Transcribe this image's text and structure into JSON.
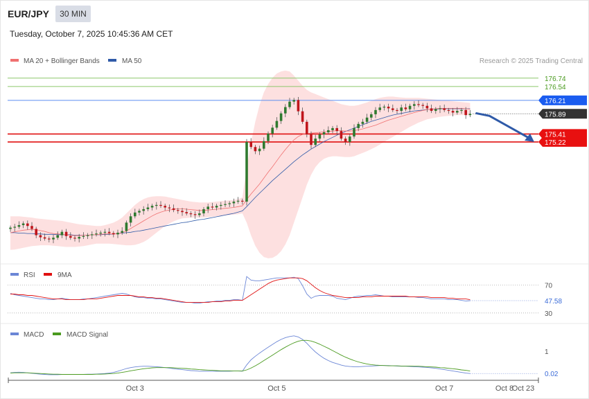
{
  "header": {
    "symbol": "EUR/JPY",
    "timeframe": "30 MIN",
    "datetime": "Tuesday, October 7, 2025 10:45:36 AM CET",
    "copyright": "Research © 2025 Trading Central"
  },
  "colors": {
    "ma20": "#f07070",
    "ma50": "#2f5aa8",
    "band_fill": "#fde0e0",
    "candle_up": "#2f7a2f",
    "candle_down": "#c0161c",
    "resistance": "#8cc76a",
    "pivot": "#5b8ef0",
    "support": "#e01010",
    "rsi": "#6b86d6",
    "rsi_ma": "#e01010",
    "macd": "#6b86d6",
    "macd_signal": "#4a9a1e"
  },
  "chart_data": [
    {
      "type": "candlestick",
      "legend": [
        {
          "name": "MA 20 + Bollinger Bands",
          "color": "#f07070"
        },
        {
          "name": "MA 50",
          "color": "#2f5aa8"
        }
      ],
      "ylim": [
        172.3,
        177.0
      ],
      "levels": [
        {
          "value": 176.74,
          "label": "176.74",
          "kind": "resistance"
        },
        {
          "value": 176.54,
          "label": "176.54",
          "kind": "resistance"
        },
        {
          "value": 176.21,
          "label": "176.21",
          "kind": "pivot"
        },
        {
          "value": 175.89,
          "label": "175.89",
          "kind": "last"
        },
        {
          "value": 175.41,
          "label": "175.41",
          "kind": "support"
        },
        {
          "value": 175.22,
          "label": "175.22",
          "kind": "support"
        }
      ],
      "closes": [
        173.18,
        173.2,
        173.24,
        173.28,
        173.22,
        173.15,
        173.0,
        172.95,
        172.92,
        172.9,
        172.94,
        173.0,
        173.08,
        172.98,
        172.94,
        172.92,
        172.96,
        172.98,
        173.0,
        173.02,
        173.04,
        173.06,
        173.08,
        173.05,
        173.02,
        173.06,
        173.1,
        173.3,
        173.45,
        173.54,
        173.58,
        173.62,
        173.66,
        173.7,
        173.72,
        173.7,
        173.66,
        173.64,
        173.6,
        173.58,
        173.55,
        173.52,
        173.5,
        173.48,
        173.52,
        173.62,
        173.68,
        173.66,
        173.7,
        173.72,
        173.74,
        173.76,
        173.8,
        173.82,
        173.8,
        175.22,
        175.1,
        175.0,
        175.06,
        175.24,
        175.42,
        175.56,
        175.72,
        175.9,
        176.05,
        176.18,
        176.22,
        175.95,
        175.7,
        175.4,
        175.15,
        175.3,
        175.4,
        175.45,
        175.5,
        175.55,
        175.48,
        175.3,
        175.22,
        175.35,
        175.55,
        175.65,
        175.7,
        175.8,
        175.88,
        175.98,
        176.04,
        176.06,
        176.02,
        175.98,
        175.96,
        176.04,
        176.0,
        176.08,
        176.12,
        176.1,
        176.08,
        176.02,
        175.96,
        176.0,
        176.02,
        175.98,
        175.96,
        175.92,
        175.96,
        175.98,
        175.86,
        175.89
      ],
      "ma20": [
        173.06,
        173.08,
        173.1,
        173.12,
        173.13,
        173.14,
        173.13,
        173.11,
        173.09,
        173.06,
        173.04,
        173.03,
        173.02,
        173.01,
        173.0,
        172.99,
        172.99,
        173.0,
        173.0,
        173.01,
        173.01,
        173.02,
        173.03,
        173.03,
        173.03,
        173.04,
        173.06,
        173.1,
        173.16,
        173.22,
        173.28,
        173.34,
        173.4,
        173.46,
        173.51,
        173.55,
        173.58,
        173.6,
        173.62,
        173.63,
        173.63,
        173.62,
        173.61,
        173.6,
        173.59,
        173.59,
        173.6,
        173.61,
        173.62,
        173.63,
        173.64,
        173.65,
        173.66,
        173.68,
        173.7,
        173.85,
        173.98,
        174.1,
        174.22,
        174.36,
        174.5,
        174.63,
        174.77,
        174.91,
        175.04,
        175.16,
        175.27,
        175.35,
        175.4,
        175.42,
        175.43,
        175.44,
        175.45,
        175.46,
        175.47,
        175.48,
        175.49,
        175.49,
        175.48,
        175.48,
        175.49,
        175.51,
        175.53,
        175.56,
        175.59,
        175.62,
        175.66,
        175.7,
        175.74,
        175.77,
        175.8,
        175.83,
        175.86,
        175.89,
        175.92,
        175.95,
        175.97,
        175.99,
        176.0,
        176.01,
        176.02,
        176.02,
        176.02,
        176.02,
        176.02,
        176.02,
        176.01,
        176.0
      ],
      "bb_upper": [
        173.45,
        173.45,
        173.45,
        173.44,
        173.43,
        173.42,
        173.4,
        173.39,
        173.38,
        173.37,
        173.36,
        173.35,
        173.34,
        173.32,
        173.3,
        173.28,
        173.26,
        173.25,
        173.24,
        173.23,
        173.22,
        173.22,
        173.24,
        173.27,
        173.3,
        173.35,
        173.42,
        173.52,
        173.62,
        173.72,
        173.8,
        173.86,
        173.9,
        173.92,
        173.93,
        173.93,
        173.92,
        173.9,
        173.88,
        173.86,
        173.84,
        173.82,
        173.8,
        173.79,
        173.78,
        173.78,
        173.78,
        173.79,
        173.8,
        173.81,
        173.82,
        173.83,
        173.84,
        173.86,
        173.9,
        174.6,
        175.2,
        175.7,
        176.1,
        176.4,
        176.6,
        176.75,
        176.85,
        176.9,
        176.92,
        176.9,
        176.8,
        176.68,
        176.56,
        176.46,
        176.4,
        176.36,
        176.32,
        176.28,
        176.24,
        176.2,
        176.16,
        176.12,
        176.1,
        176.08,
        176.08,
        176.1,
        176.13,
        176.16,
        176.2,
        176.24,
        176.27,
        176.29,
        176.3,
        176.3,
        176.29,
        176.28,
        176.27,
        176.27,
        176.27,
        176.27,
        176.26,
        176.25,
        176.24,
        176.23,
        176.22,
        176.21,
        176.2,
        176.19,
        176.18,
        176.17,
        176.16,
        176.15
      ],
      "bb_lower": [
        172.65,
        172.66,
        172.68,
        172.7,
        172.72,
        172.74,
        172.75,
        172.76,
        172.76,
        172.76,
        172.75,
        172.74,
        172.73,
        172.72,
        172.72,
        172.72,
        172.73,
        172.74,
        172.76,
        172.78,
        172.8,
        172.8,
        172.8,
        172.8,
        172.79,
        172.78,
        172.77,
        172.76,
        172.76,
        172.77,
        172.8,
        172.84,
        172.9,
        172.98,
        173.06,
        173.14,
        173.22,
        173.28,
        173.33,
        173.37,
        173.4,
        173.41,
        173.42,
        173.42,
        173.42,
        173.42,
        173.43,
        173.44,
        173.45,
        173.46,
        173.47,
        173.48,
        173.49,
        173.5,
        173.52,
        173.3,
        173.0,
        172.75,
        172.58,
        172.48,
        172.45,
        172.46,
        172.52,
        172.62,
        172.78,
        173.0,
        173.3,
        173.6,
        173.9,
        174.2,
        174.44,
        174.62,
        174.74,
        174.82,
        174.86,
        174.88,
        174.88,
        174.87,
        174.86,
        174.86,
        174.88,
        174.92,
        174.96,
        175.0,
        175.05,
        175.1,
        175.16,
        175.22,
        175.28,
        175.34,
        175.4,
        175.46,
        175.52,
        175.58,
        175.63,
        175.68,
        175.72,
        175.76,
        175.78,
        175.8,
        175.82,
        175.83,
        175.84,
        175.85,
        175.86,
        175.86,
        175.86,
        175.85
      ],
      "ma50": [
        173.06,
        173.06,
        173.05,
        173.05,
        173.04,
        173.04,
        173.03,
        173.03,
        173.02,
        173.02,
        173.02,
        173.01,
        173.01,
        173.01,
        173.01,
        173.0,
        173.0,
        173.0,
        173.0,
        173.01,
        173.01,
        173.01,
        173.02,
        173.02,
        173.03,
        173.04,
        173.05,
        173.06,
        173.07,
        173.09,
        173.1,
        173.12,
        173.14,
        173.16,
        173.18,
        173.2,
        173.22,
        173.24,
        173.26,
        173.28,
        173.3,
        173.31,
        173.33,
        173.35,
        173.37,
        173.38,
        173.4,
        173.42,
        173.44,
        173.46,
        173.48,
        173.5,
        173.52,
        173.55,
        173.58,
        173.68,
        173.79,
        173.9,
        174.0,
        174.1,
        174.2,
        174.3,
        174.39,
        174.48,
        174.57,
        174.66,
        174.75,
        174.83,
        174.91,
        174.98,
        175.05,
        175.11,
        175.17,
        175.23,
        175.28,
        175.33,
        175.38,
        175.43,
        175.47,
        175.51,
        175.55,
        175.59,
        175.63,
        175.67,
        175.71,
        175.74,
        175.77,
        175.8,
        175.83,
        175.86,
        175.88,
        175.9,
        175.92,
        175.94,
        175.96,
        175.97,
        175.98,
        175.99,
        176.0,
        176.0,
        176.01,
        176.01,
        176.01,
        176.01,
        176.01,
        176.01,
        176.01,
        176.01
      ],
      "forecast": {
        "from": 175.89,
        "to": 175.22
      }
    },
    {
      "type": "line",
      "legend": [
        {
          "name": "RSI",
          "color": "#6b86d6"
        },
        {
          "name": "9MA",
          "color": "#e01010"
        }
      ],
      "ylim": [
        15,
        100
      ],
      "levels": [
        {
          "value": 70,
          "label": "70"
        },
        {
          "value": 30,
          "label": "30"
        }
      ],
      "last_label": "47.58",
      "rsi": [
        58,
        56,
        55,
        54,
        53,
        52,
        51,
        50,
        50,
        49,
        49,
        50,
        51,
        50,
        49,
        49,
        49,
        50,
        50,
        51,
        52,
        53,
        54,
        55,
        56,
        57,
        58,
        57,
        55,
        53,
        52,
        52,
        51,
        51,
        50,
        50,
        49,
        48,
        47,
        46,
        45,
        45,
        45,
        44,
        44,
        45,
        46,
        46,
        47,
        47,
        48,
        48,
        49,
        49,
        48,
        82,
        77,
        76,
        76,
        77,
        78,
        79,
        80,
        80,
        80,
        80,
        81,
        79,
        69,
        57,
        51,
        54,
        55,
        55,
        55,
        54,
        51,
        50,
        49,
        51,
        53,
        54,
        54,
        55,
        55,
        56,
        55,
        54,
        54,
        53,
        53,
        53,
        53,
        53,
        53,
        52,
        52,
        51,
        50,
        50,
        50,
        50,
        49,
        49,
        49,
        48,
        47,
        47.58
      ],
      "rsi_ma": [
        57,
        57,
        56,
        56,
        55,
        55,
        54,
        53,
        52,
        51,
        50,
        50,
        50,
        49,
        49,
        49,
        49,
        49,
        50,
        50,
        50,
        51,
        52,
        53,
        54,
        55,
        55,
        55,
        55,
        54,
        53,
        53,
        52,
        52,
        51,
        51,
        50,
        49,
        48,
        47,
        46,
        45,
        45,
        45,
        45,
        45,
        45,
        46,
        46,
        46,
        47,
        47,
        48,
        48,
        48,
        52,
        56,
        60,
        64,
        68,
        72,
        75,
        77,
        78,
        79,
        80,
        80,
        80,
        79,
        76,
        71,
        66,
        62,
        59,
        57,
        55,
        54,
        53,
        52,
        52,
        52,
        52,
        53,
        53,
        53,
        54,
        54,
        54,
        54,
        54,
        54,
        54,
        54,
        53,
        53,
        53,
        53,
        53,
        52,
        52,
        52,
        52,
        51,
        51,
        50,
        50,
        50,
        49
      ]
    },
    {
      "type": "line",
      "legend": [
        {
          "name": "MACD",
          "color": "#6b86d6"
        },
        {
          "name": "MACD Signal",
          "color": "#4a9a1e"
        }
      ],
      "ylim": [
        -0.4,
        2.1
      ],
      "tick_label": "1",
      "last_label": "0.02",
      "macd": [
        0.05,
        0.07,
        0.08,
        0.07,
        0.05,
        0.03,
        0.01,
        -0.01,
        -0.02,
        -0.03,
        -0.03,
        -0.03,
        -0.02,
        -0.02,
        -0.02,
        -0.02,
        -0.02,
        -0.02,
        -0.01,
        -0.01,
        0.0,
        0.01,
        0.02,
        0.04,
        0.07,
        0.12,
        0.18,
        0.24,
        0.28,
        0.31,
        0.33,
        0.34,
        0.34,
        0.33,
        0.32,
        0.3,
        0.28,
        0.26,
        0.23,
        0.21,
        0.19,
        0.17,
        0.15,
        0.14,
        0.12,
        0.12,
        0.12,
        0.12,
        0.12,
        0.12,
        0.12,
        0.12,
        0.13,
        0.13,
        0.12,
        0.4,
        0.62,
        0.78,
        0.92,
        1.05,
        1.18,
        1.3,
        1.42,
        1.52,
        1.6,
        1.65,
        1.68,
        1.63,
        1.52,
        1.35,
        1.15,
        0.97,
        0.82,
        0.69,
        0.59,
        0.51,
        0.45,
        0.39,
        0.35,
        0.33,
        0.32,
        0.32,
        0.33,
        0.34,
        0.35,
        0.36,
        0.37,
        0.37,
        0.37,
        0.36,
        0.35,
        0.34,
        0.34,
        0.33,
        0.32,
        0.31,
        0.3,
        0.29,
        0.27,
        0.25,
        0.22,
        0.19,
        0.16,
        0.13,
        0.1,
        0.07,
        0.04,
        0.02
      ],
      "signal": [
        0.04,
        0.05,
        0.05,
        0.05,
        0.05,
        0.04,
        0.03,
        0.02,
        0.01,
        0.0,
        -0.01,
        -0.01,
        -0.02,
        -0.02,
        -0.02,
        -0.02,
        -0.02,
        -0.02,
        -0.02,
        -0.02,
        -0.01,
        -0.01,
        0.0,
        0.01,
        0.02,
        0.04,
        0.07,
        0.1,
        0.14,
        0.17,
        0.2,
        0.23,
        0.25,
        0.27,
        0.28,
        0.28,
        0.28,
        0.28,
        0.27,
        0.26,
        0.25,
        0.24,
        0.22,
        0.21,
        0.19,
        0.18,
        0.17,
        0.16,
        0.15,
        0.14,
        0.14,
        0.14,
        0.13,
        0.13,
        0.13,
        0.18,
        0.26,
        0.36,
        0.47,
        0.59,
        0.71,
        0.83,
        0.95,
        1.07,
        1.18,
        1.28,
        1.37,
        1.44,
        1.48,
        1.48,
        1.45,
        1.39,
        1.31,
        1.22,
        1.13,
        1.03,
        0.93,
        0.83,
        0.74,
        0.66,
        0.59,
        0.53,
        0.48,
        0.44,
        0.41,
        0.39,
        0.38,
        0.37,
        0.36,
        0.36,
        0.36,
        0.35,
        0.35,
        0.35,
        0.34,
        0.34,
        0.33,
        0.32,
        0.31,
        0.3,
        0.28,
        0.27,
        0.25,
        0.23,
        0.21,
        0.18,
        0.16,
        0.13
      ]
    }
  ],
  "x_axis": {
    "ticks": [
      {
        "label": "Oct 3",
        "index": 29
      },
      {
        "label": "Oct 5",
        "index": 62
      },
      {
        "label": "Oct 7",
        "index": 101
      },
      {
        "label": "Oct 8",
        "index": 115
      },
      {
        "label": "Oct 23",
        "index": 127
      }
    ]
  }
}
